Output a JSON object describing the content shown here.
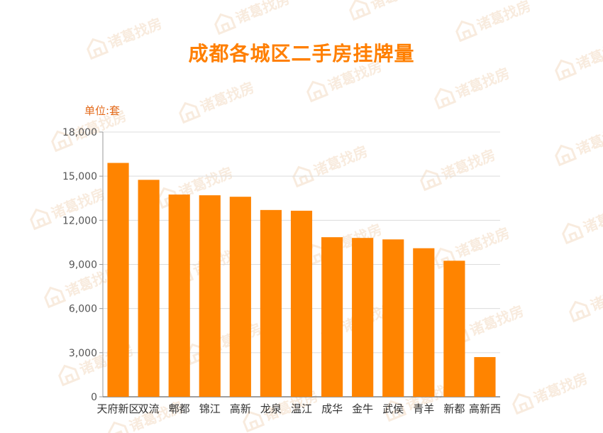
{
  "watermark": {
    "text": "诸葛找房",
    "color": "#f4dcc4"
  },
  "chart_data": {
    "type": "bar",
    "title": "成都各城区二手房挂牌量",
    "unit_label": "单位:套",
    "categories": [
      "天府新区",
      "双流",
      "郫都",
      "锦江",
      "高新",
      "龙泉",
      "温江",
      "成华",
      "金牛",
      "武侯",
      "青羊",
      "新都",
      "高新西"
    ],
    "values": [
      15900,
      14750,
      13750,
      13700,
      13600,
      12700,
      12650,
      10850,
      10800,
      10700,
      10100,
      9250,
      2700
    ],
    "ylim": [
      0,
      18000
    ],
    "yticks": [
      0,
      3000,
      6000,
      9000,
      12000,
      15000,
      18000
    ],
    "ytick_labels": [
      "0",
      "3,000",
      "6,000",
      "9,000",
      "12,000",
      "15,000",
      "18,000"
    ],
    "grid": true,
    "bar_color": "#ff8400",
    "title_color": "#ff7f00",
    "axis_color": "#999999",
    "grid_color": "#dcdcdc"
  }
}
